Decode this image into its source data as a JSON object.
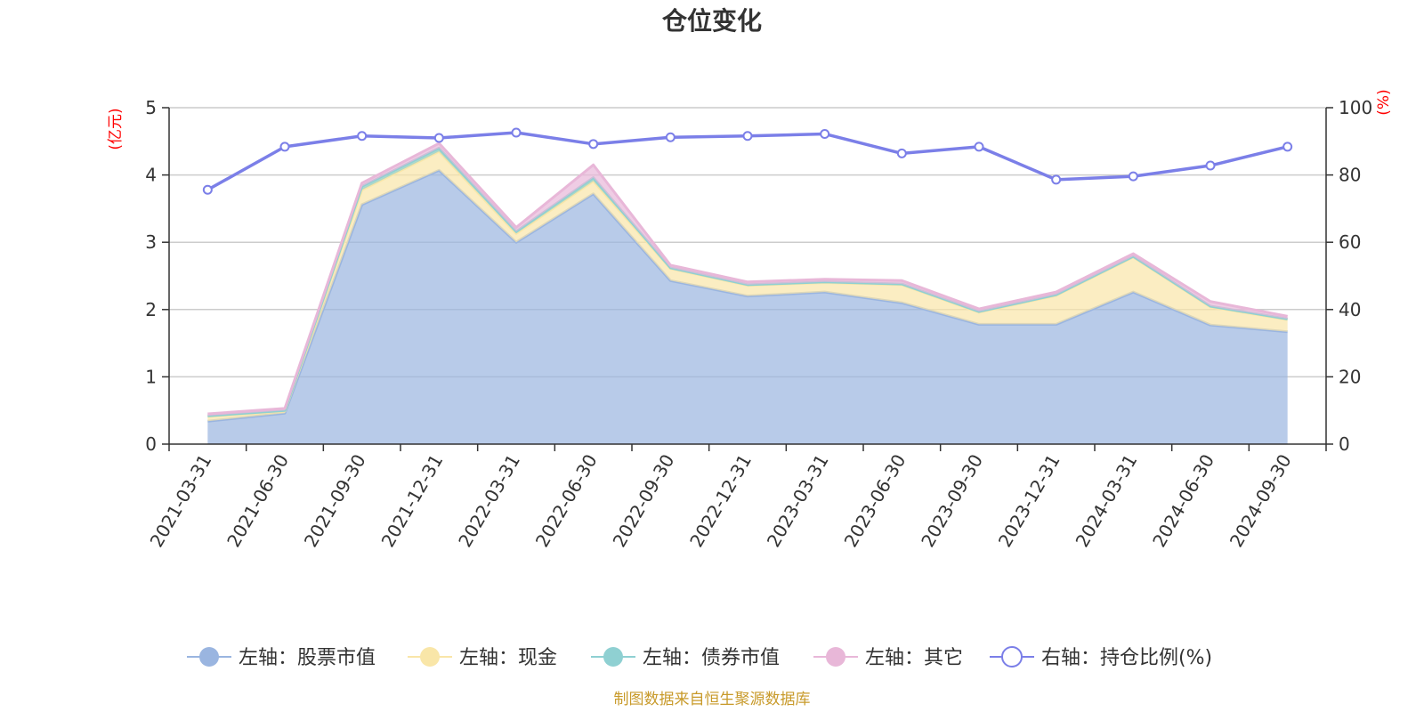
{
  "chart_data": {
    "type": "area",
    "title": "仓位变化",
    "source": "制图数据来自恒生聚源数据库",
    "left_unit": "(亿元)",
    "right_unit": "(%)",
    "left_ticks": [
      "0",
      "1",
      "2",
      "3",
      "4",
      "5"
    ],
    "right_ticks": [
      "0",
      "20",
      "40",
      "60",
      "80",
      "100"
    ],
    "ylim_left": [
      0,
      5
    ],
    "ylim_right": [
      0,
      100
    ],
    "grid": true,
    "legend_position": "bottom",
    "categories": [
      "2021-03-31",
      "2021-06-30",
      "2021-09-30",
      "2021-12-31",
      "2022-03-31",
      "2022-06-30",
      "2022-09-30",
      "2022-12-31",
      "2023-03-31",
      "2023-06-30",
      "2023-09-30",
      "2023-12-31",
      "2024-03-31",
      "2024-06-30",
      "2024-09-30"
    ],
    "series": [
      {
        "name": "左轴：股票市值",
        "axis": "left",
        "stack": true,
        "color": "#9ab5e0",
        "values": [
          0.34,
          0.46,
          3.56,
          4.07,
          3.0,
          3.72,
          2.43,
          2.2,
          2.26,
          2.1,
          1.78,
          1.78,
          2.26,
          1.77,
          1.67
        ]
      },
      {
        "name": "左轴：现金",
        "axis": "left",
        "stack": true,
        "color": "#f9e6a8",
        "values": [
          0.07,
          0.03,
          0.22,
          0.28,
          0.13,
          0.19,
          0.18,
          0.16,
          0.14,
          0.27,
          0.18,
          0.43,
          0.52,
          0.27,
          0.18
        ]
      },
      {
        "name": "左轴：债券市值",
        "axis": "left",
        "stack": true,
        "color": "#8fd0d2",
        "values": [
          0.01,
          0.01,
          0.05,
          0.05,
          0.03,
          0.05,
          0.01,
          0.01,
          0.01,
          0.01,
          0.01,
          0.01,
          0.01,
          0.01,
          0.01
        ]
      },
      {
        "name": "左轴：其它",
        "axis": "left",
        "stack": true,
        "color": "#e8b7d8",
        "values": [
          0.03,
          0.03,
          0.05,
          0.07,
          0.06,
          0.19,
          0.04,
          0.04,
          0.04,
          0.05,
          0.04,
          0.04,
          0.04,
          0.07,
          0.04
        ]
      },
      {
        "name": "右轴：持仓比例(%)",
        "axis": "right",
        "stack": false,
        "color": "#7b7fe8",
        "values": [
          75.6,
          88.4,
          91.6,
          91.0,
          92.6,
          89.2,
          91.2,
          91.6,
          92.2,
          86.4,
          88.4,
          78.6,
          79.6,
          82.8,
          88.4
        ]
      }
    ]
  }
}
